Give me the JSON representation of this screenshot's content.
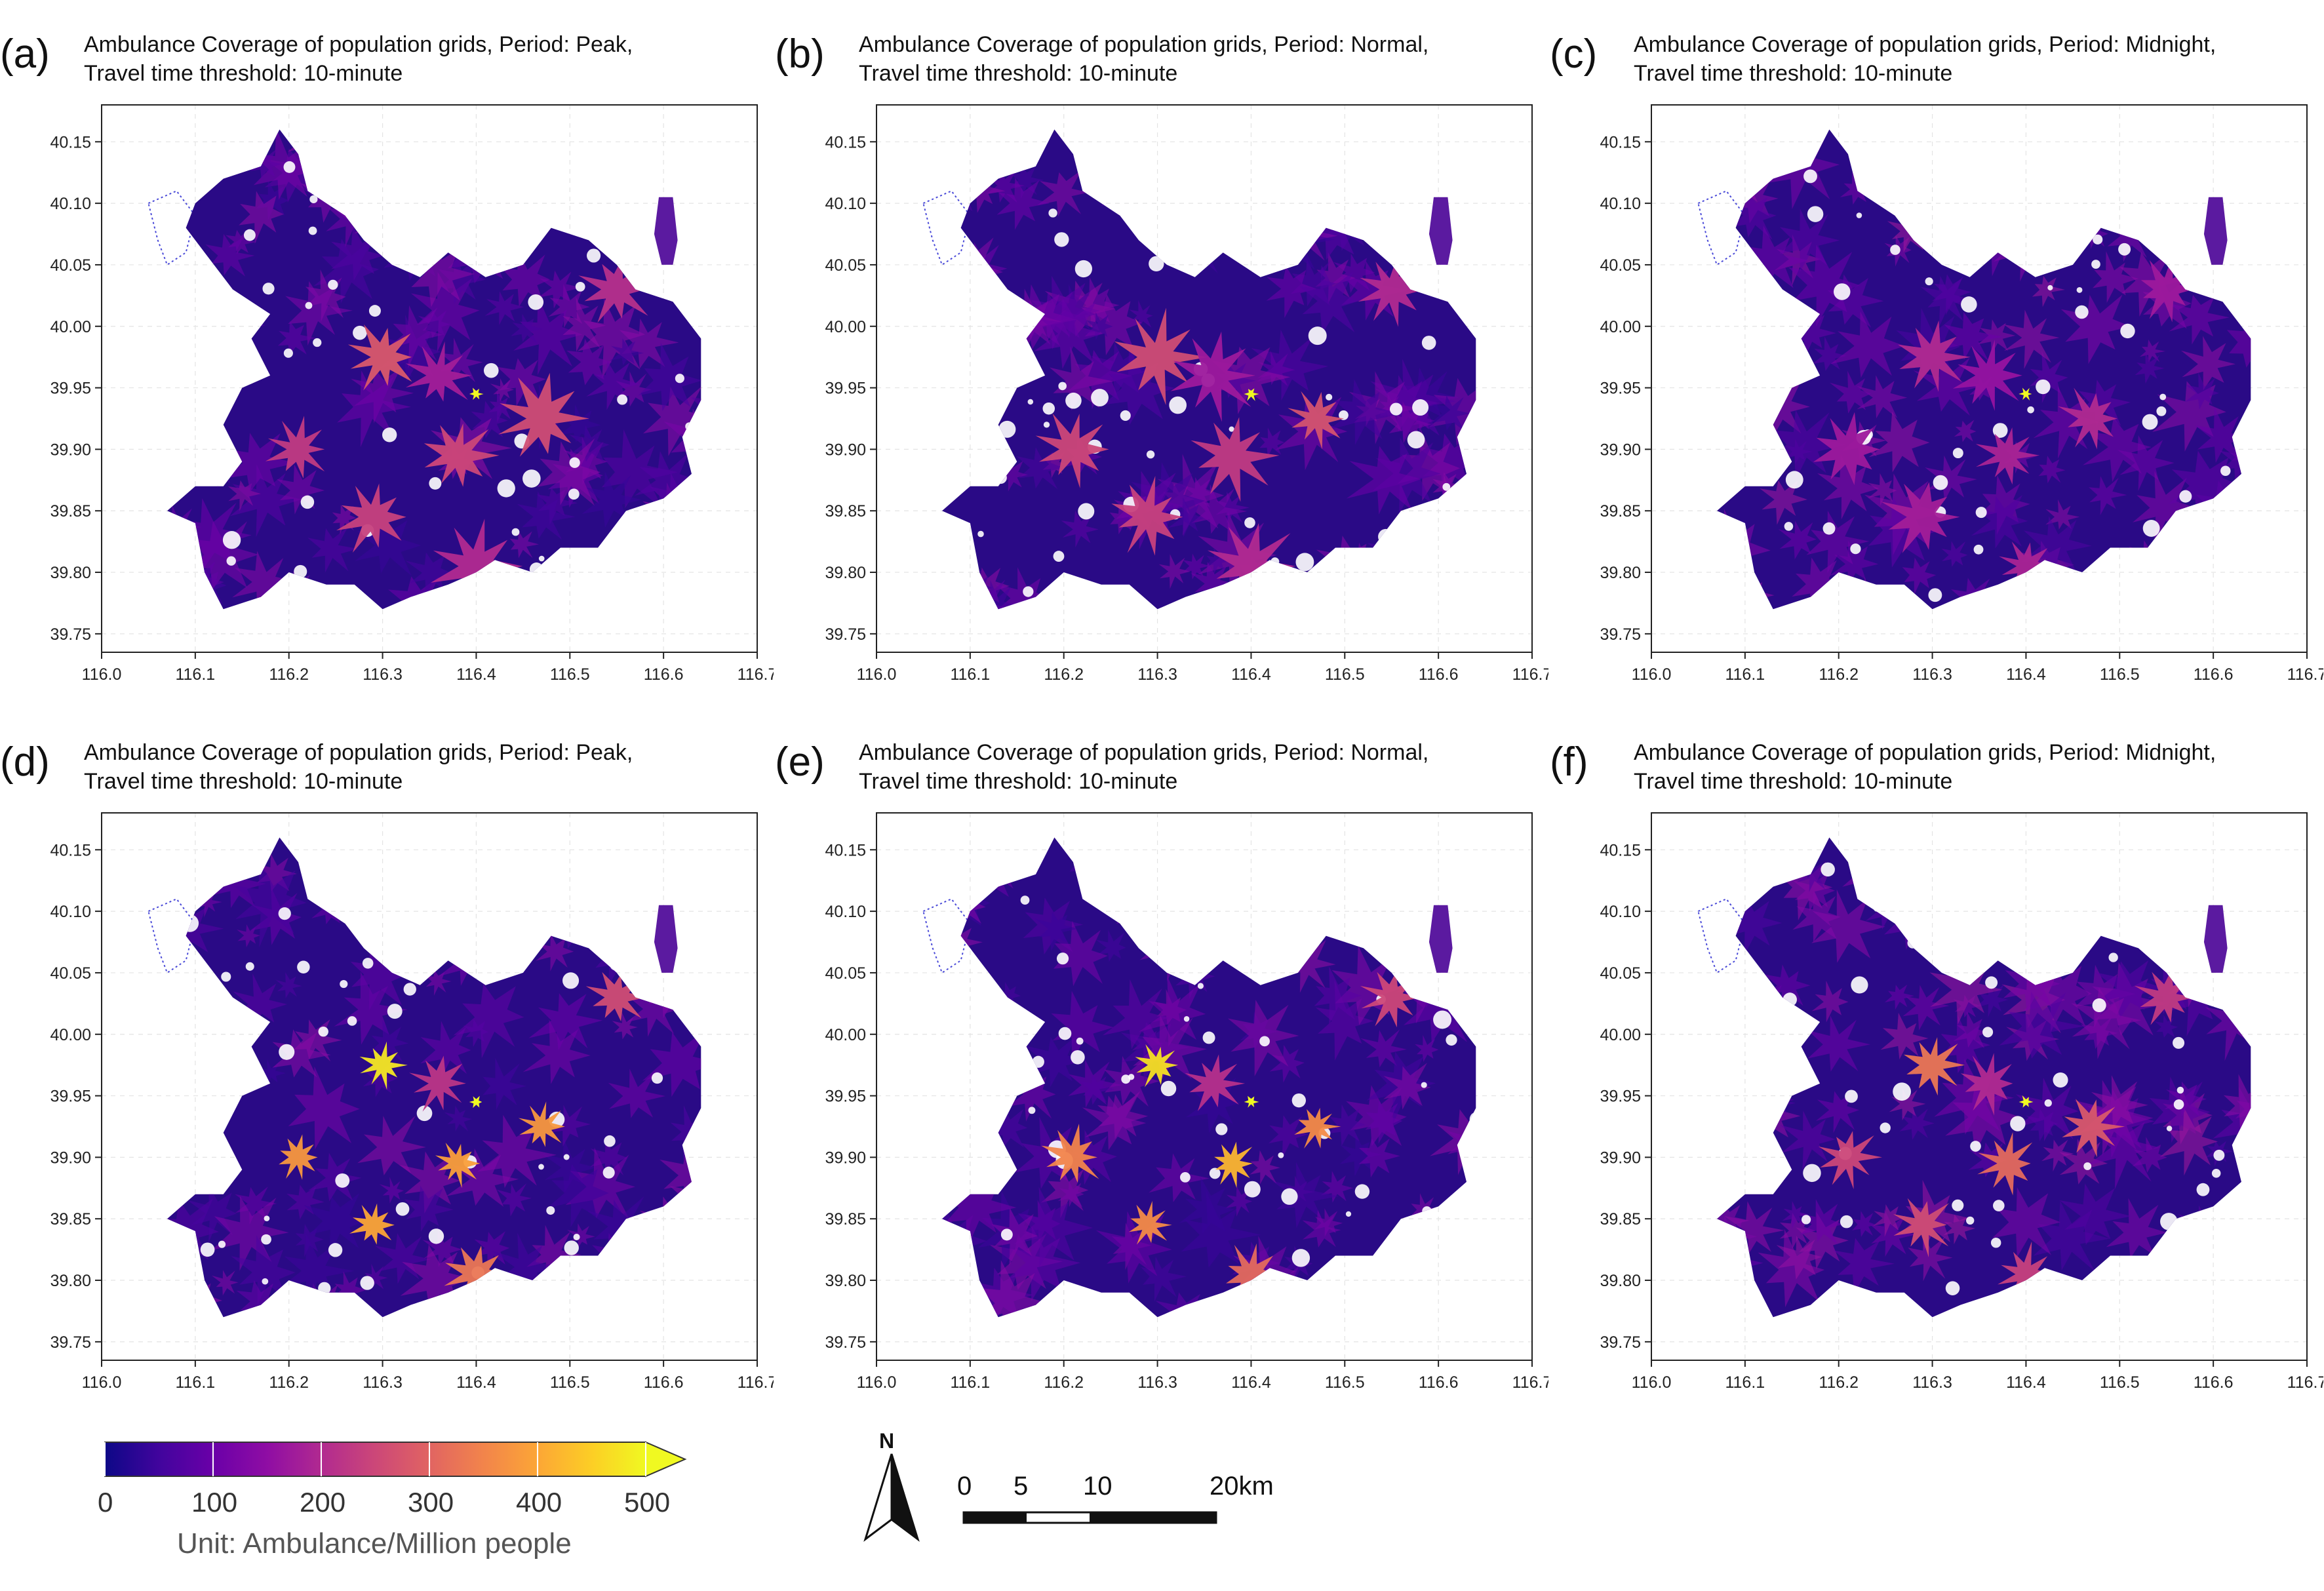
{
  "panels": [
    {
      "letter": "(a)",
      "title_line1": "Ambulance Coverage of population grids,  Period: Peak,",
      "title_line2": "Travel time threshold: 10-minute"
    },
    {
      "letter": "(b)",
      "title_line1": "Ambulance Coverage of population grids,  Period: Normal,",
      "title_line2": "Travel time threshold: 10-minute"
    },
    {
      "letter": "(c)",
      "title_line1": "Ambulance Coverage of population grids,  Period: Midnight,",
      "title_line2": "Travel time threshold: 10-minute"
    },
    {
      "letter": "(d)",
      "title_line1": "Ambulance Coverage of population grids,  Period: Peak,",
      "title_line2": "Travel time threshold: 10-minute"
    },
    {
      "letter": "(e)",
      "title_line1": "Ambulance Coverage of population grids,  Period: Normal,",
      "title_line2": "Travel time threshold: 10-minute"
    },
    {
      "letter": "(f)",
      "title_line1": "Ambulance Coverage of population grids,  Period: Midnight,",
      "title_line2": "Travel time threshold: 10-minute"
    }
  ],
  "map_axes": {
    "lat_ticks": [
      "40.15",
      "40.10",
      "40.05",
      "40.00",
      "39.95",
      "39.90",
      "39.85",
      "39.80",
      "39.75"
    ],
    "lon_ticks": [
      "116.0",
      "116.1",
      "116.2",
      "116.3",
      "116.4",
      "116.5",
      "116.6",
      "116.7"
    ],
    "lon_range": [
      116.0,
      116.7
    ],
    "lat_range": [
      39.735,
      40.18
    ],
    "grid": true
  },
  "hotspots": [
    {
      "lon": 116.3,
      "lat": 39.975,
      "value": [
        280,
        260,
        200,
        480,
        470,
        330
      ]
    },
    {
      "lon": 116.21,
      "lat": 39.9,
      "value": [
        230,
        250,
        170,
        380,
        350,
        250
      ]
    },
    {
      "lon": 116.29,
      "lat": 39.845,
      "value": [
        240,
        240,
        180,
        400,
        360,
        260
      ]
    },
    {
      "lon": 116.38,
      "lat": 39.895,
      "value": [
        250,
        230,
        190,
        390,
        420,
        310
      ]
    },
    {
      "lon": 116.47,
      "lat": 39.925,
      "value": [
        260,
        270,
        200,
        380,
        360,
        280
      ]
    },
    {
      "lon": 116.4,
      "lat": 39.805,
      "value": [
        200,
        200,
        190,
        330,
        310,
        240
      ]
    },
    {
      "lon": 116.55,
      "lat": 40.03,
      "value": [
        210,
        200,
        170,
        260,
        250,
        230
      ]
    },
    {
      "lon": 116.36,
      "lat": 39.96,
      "value": [
        180,
        170,
        160,
        220,
        210,
        200
      ]
    }
  ],
  "colorbar": {
    "ticks": [
      "0",
      "100",
      "200",
      "300",
      "400",
      "500"
    ],
    "min": 0,
    "max": 500,
    "colormap": "plasma",
    "unit_label": "Unit: Ambulance/Million people",
    "colors": [
      "#0d0887",
      "#41049d",
      "#6a00a8",
      "#8f0da4",
      "#b12a90",
      "#cc4778",
      "#e16462",
      "#f2844b",
      "#fca636",
      "#fcce25",
      "#f0f921"
    ]
  },
  "north_arrow": {
    "label": "N"
  },
  "scale_bar": {
    "labels": [
      "0",
      "5",
      "10",
      "20km"
    ]
  }
}
